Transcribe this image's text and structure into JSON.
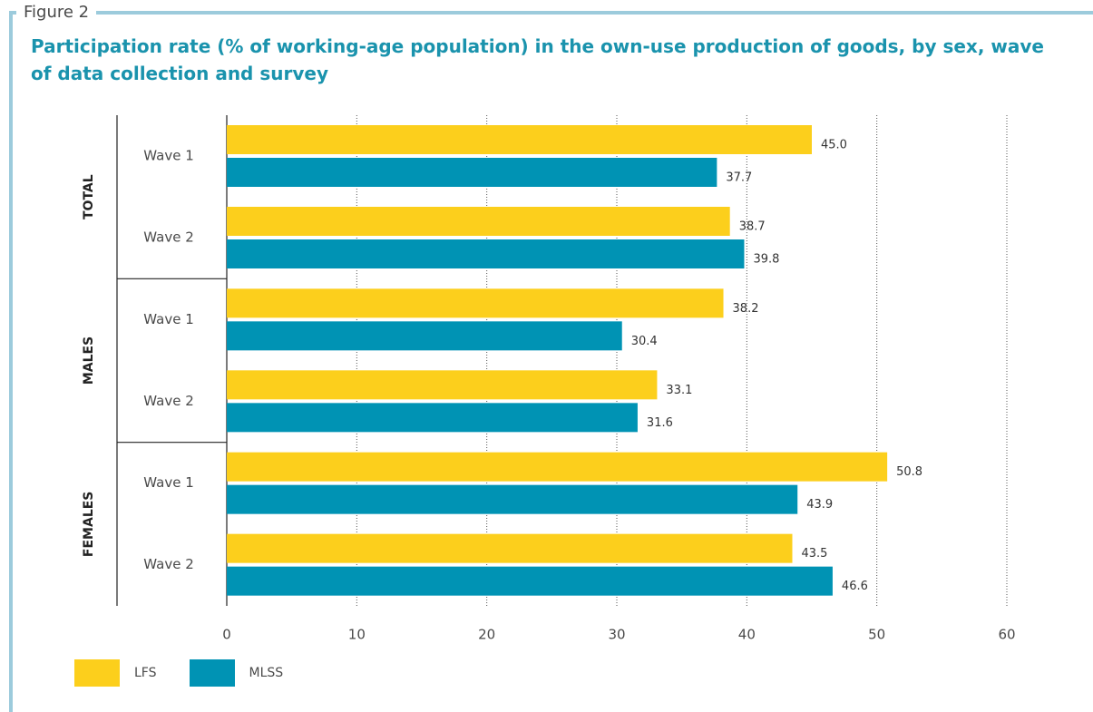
{
  "figure_label": "Figure 2",
  "colors": {
    "LFS": "#fccf1c",
    "MLSS": "#0093b4",
    "frame": "#9ccbdc",
    "title": "#1a93ad"
  },
  "chart_data": {
    "type": "bar",
    "orientation": "horizontal",
    "title": "Participation rate (% of working-age population) in the own-use production of goods, by sex, wave of data collection and survey",
    "xlabel": "",
    "ylabel": "",
    "xlim": [
      0,
      60
    ],
    "xticks": [
      "0",
      "10",
      "20",
      "30",
      "40",
      "50",
      "60"
    ],
    "grid": "vertical dotted",
    "legend_position": "bottom-left",
    "groups": [
      {
        "label": "TOTAL",
        "categories": [
          {
            "label": "Wave 1",
            "values": {
              "LFS": 45.0,
              "MLSS": 37.7
            },
            "labels": {
              "LFS": "45.0",
              "MLSS": "37.7"
            }
          },
          {
            "label": "Wave 2",
            "values": {
              "LFS": 38.7,
              "MLSS": 39.8
            },
            "labels": {
              "LFS": "38.7",
              "MLSS": "39.8"
            }
          }
        ]
      },
      {
        "label": "MALES",
        "categories": [
          {
            "label": "Wave 1",
            "values": {
              "LFS": 38.2,
              "MLSS": 30.4
            },
            "labels": {
              "LFS": "38.2",
              "MLSS": "30.4"
            }
          },
          {
            "label": "Wave 2",
            "values": {
              "LFS": 33.1,
              "MLSS": 31.6
            },
            "labels": {
              "LFS": "33.1",
              "MLSS": "31.6"
            }
          }
        ]
      },
      {
        "label": "FEMALES",
        "categories": [
          {
            "label": "Wave 1",
            "values": {
              "LFS": 50.8,
              "MLSS": 43.9
            },
            "labels": {
              "LFS": "50.8",
              "MLSS": "43.9"
            }
          },
          {
            "label": "Wave 2",
            "values": {
              "LFS": 43.5,
              "MLSS": 46.6
            },
            "labels": {
              "LFS": "43.5",
              "MLSS": "46.6"
            }
          }
        ]
      }
    ],
    "series": [
      {
        "name": "LFS"
      },
      {
        "name": "MLSS"
      }
    ]
  }
}
